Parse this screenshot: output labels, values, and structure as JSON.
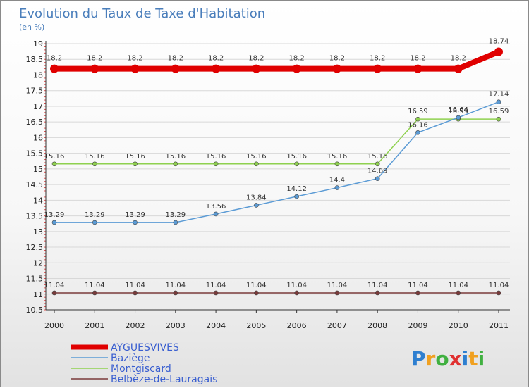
{
  "chart_data": {
    "type": "line",
    "title": "Evolution du Taux de Taxe d'Habitation",
    "subtitle": "(en %)",
    "xlabel": "",
    "ylabel": "",
    "x": [
      "2000",
      "2001",
      "2002",
      "2003",
      "2004",
      "2005",
      "2006",
      "2007",
      "2008",
      "2009",
      "2010",
      "2011"
    ],
    "ylim": [
      10.5,
      19
    ],
    "yticks": [
      10.5,
      11,
      11.5,
      12,
      12.5,
      13,
      13.5,
      14,
      14.5,
      15,
      15.5,
      16,
      16.5,
      17,
      17.5,
      18,
      18.5,
      19
    ],
    "grid": "horizontal",
    "legend_position": "bottom-left",
    "series": [
      {
        "name": "AYGUESVIVES",
        "color": "#e00000",
        "values": [
          18.2,
          18.2,
          18.2,
          18.2,
          18.2,
          18.2,
          18.2,
          18.2,
          18.2,
          18.2,
          18.2,
          18.74
        ],
        "labels": [
          "18.2",
          "18.2",
          "18.2",
          "18.2",
          "18.2",
          "18.2",
          "18.2",
          "18.2",
          "18.2",
          "18.2",
          "18.2",
          "18.74"
        ]
      },
      {
        "name": "Baziège",
        "color": "#5b9bd5",
        "values": [
          13.29,
          13.29,
          13.29,
          13.29,
          13.56,
          13.84,
          14.12,
          14.4,
          14.69,
          16.16,
          16.64,
          17.14
        ],
        "labels": [
          "13.29",
          "13.29",
          "13.29",
          "13.29",
          "13.56",
          "13.84",
          "14.12",
          "14.4",
          "14.69",
          "16.16",
          "16.64",
          "17.14"
        ]
      },
      {
        "name": "Montgiscard",
        "color": "#8fd14f",
        "values": [
          15.16,
          15.16,
          15.16,
          15.16,
          15.16,
          15.16,
          15.16,
          15.16,
          15.16,
          16.59,
          16.59,
          16.59
        ],
        "labels": [
          "15.16",
          "15.16",
          "15.16",
          "15.16",
          "15.16",
          "15.16",
          "15.16",
          "15.16",
          "15.16",
          "16.59",
          "16.59",
          "16.59"
        ]
      },
      {
        "name": "Belbèze-de-Lauragais",
        "color": "#7a3a3a",
        "values": [
          11.04,
          11.04,
          11.04,
          11.04,
          11.04,
          11.04,
          11.04,
          11.04,
          11.04,
          11.04,
          11.04,
          11.04
        ],
        "labels": [
          "11.04",
          "11.04",
          "11.04",
          "11.04",
          "11.04",
          "11.04",
          "11.04",
          "11.04",
          "11.04",
          "11.04",
          "11.04",
          "11.04"
        ]
      }
    ]
  },
  "brand": {
    "letters": [
      "P",
      "r",
      "o",
      "x",
      "i",
      "t",
      "i"
    ],
    "colors": [
      "#2e7fd0",
      "#f0a020",
      "#40b040",
      "#e03030",
      "#2e7fd0",
      "#f0a020",
      "#40b040"
    ]
  }
}
